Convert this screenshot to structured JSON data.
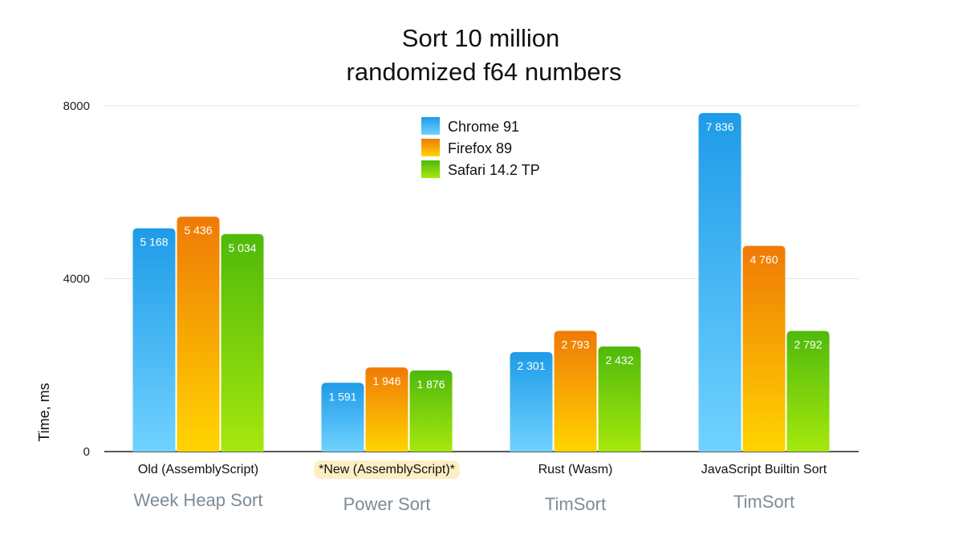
{
  "chart_data": {
    "type": "bar",
    "title_lines": [
      "Sort 10 million",
      "randomized f64 numbers"
    ],
    "ylabel": "Time, ms",
    "xlabel": "",
    "ylim": [
      0,
      8000
    ],
    "yticks": [
      "0",
      "4000",
      "8000"
    ],
    "ytick_values": [
      0,
      4000,
      8000
    ],
    "grid": true,
    "legend_position": "top-center",
    "categories": [
      "Old (AssemblyScript)",
      "*New (AssemblyScript)*",
      "Rust (Wasm)",
      "JavaScript Builtin Sort"
    ],
    "subcategories": [
      "Week Heap Sort",
      "Power Sort",
      "TimSort",
      "TimSort"
    ],
    "highlighted_category": "*New (AssemblyScript)*",
    "series": [
      {
        "name": "Chrome 91",
        "values": [
          5168,
          1591,
          2301,
          7836
        ],
        "labels": [
          "5 168",
          "1 591",
          "2 301",
          "7 836"
        ],
        "color_top": "#1e9be8",
        "color_bottom": "#70d2ff"
      },
      {
        "name": "Firefox 89",
        "values": [
          5436,
          1946,
          2793,
          4760
        ],
        "labels": [
          "5 436",
          "1 946",
          "2 793",
          "4 760"
        ],
        "color_top": "#ef7a06",
        "color_bottom": "#ffd400"
      },
      {
        "name": "Safari 14.2 TP",
        "values": [
          5034,
          1876,
          2432,
          2792
        ],
        "labels": [
          "5 034",
          "1 876",
          "2 432",
          "2 792"
        ],
        "color_top": "#4fb90b",
        "color_bottom": "#a6e80d"
      }
    ],
    "colors": {
      "grid": "#e3e3e3",
      "axis": "#222222",
      "highlight": "#fdeec4",
      "subcategory_text": "#7d8a96"
    }
  }
}
